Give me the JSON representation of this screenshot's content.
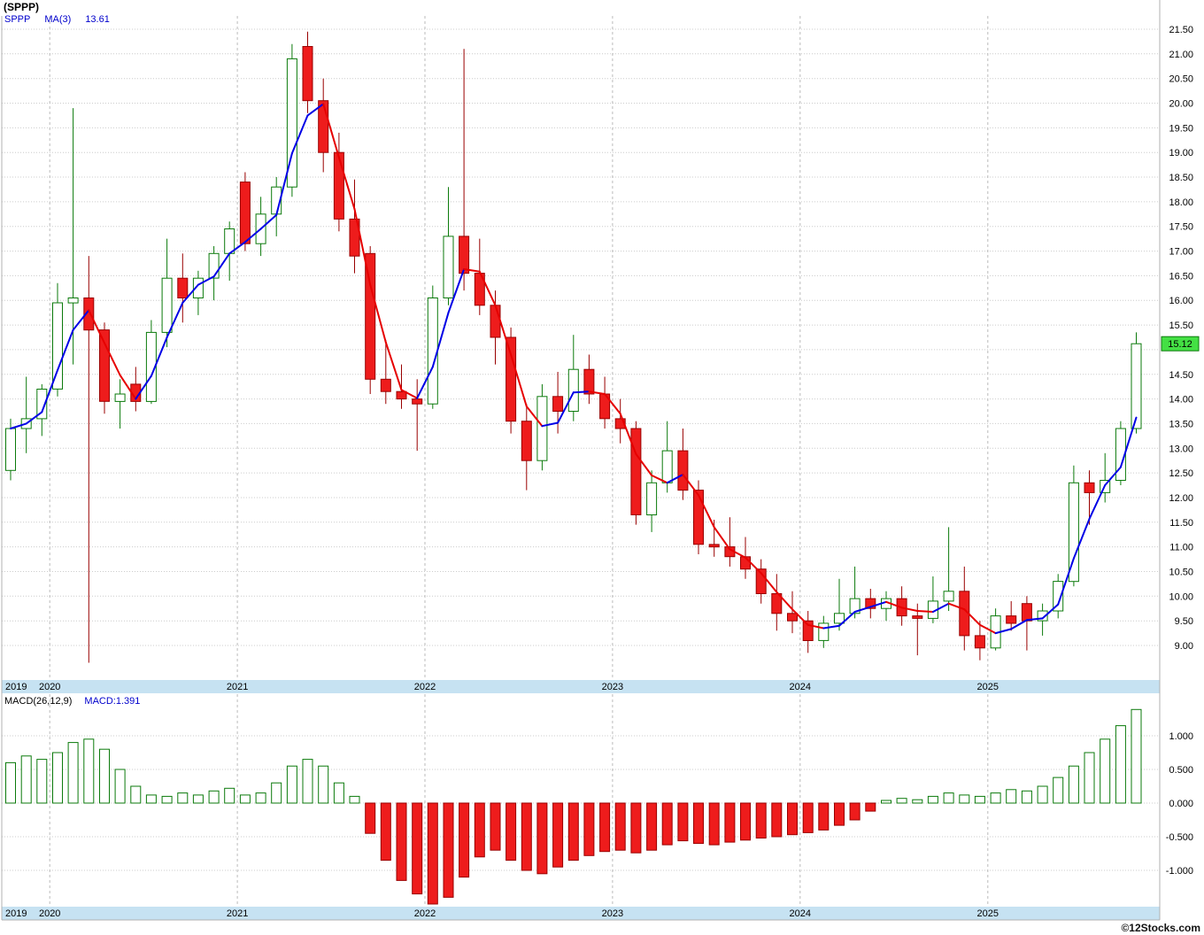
{
  "header": {
    "title": "(SPPP)",
    "ticker": "SPPP",
    "ma_label": "MA(3)",
    "ma_value": "13.61"
  },
  "macd_header": {
    "label": "MACD(26,12,9)",
    "value": "MACD:1.391"
  },
  "watermark": "©12Stocks.com",
  "axes": {
    "price_ticks": [
      "21.50",
      "21.00",
      "20.50",
      "20.00",
      "19.50",
      "19.00",
      "18.50",
      "18.00",
      "17.50",
      "17.00",
      "16.50",
      "16.00",
      "15.50",
      "14.50",
      "14.00",
      "13.50",
      "13.00",
      "12.50",
      "12.00",
      "11.50",
      "11.00",
      "10.50",
      "10.00",
      "9.50",
      "9.00"
    ],
    "current_price": {
      "label": "15.12",
      "value": 15.12
    },
    "years": [
      "2019",
      "2020",
      "2021",
      "2022",
      "2023",
      "2024",
      "2025"
    ],
    "macd_ticks": [
      "1.000",
      "0.500",
      "0.000",
      "-0.500",
      "-1.000"
    ]
  },
  "colors": {
    "up": "#0b7a0b",
    "up_fill": "#ffffff",
    "down": "#ee1c1c",
    "down_edge": "#990000",
    "ma_up": "#0000e6",
    "ma_down": "#e60000",
    "grid": "#cccccc",
    "year_grid": "#bbbbbb",
    "band": "#c6e2f2",
    "border": "#b0b0b0",
    "current_bg": "#44e044",
    "current_border": "#0b7a0b",
    "legend_blue": "#0000cc"
  },
  "chart_data": [
    {
      "type": "candlestick",
      "name": "SPPP monthly price",
      "interval": "monthly",
      "start_month": "2019-10",
      "ylim": [
        8.3,
        21.75
      ],
      "yticks_step": 0.5,
      "grid": true,
      "ohlc": [
        [
          12.55,
          13.6,
          12.35,
          13.4
        ],
        [
          13.4,
          14.45,
          12.9,
          13.6
        ],
        [
          13.6,
          14.3,
          13.25,
          14.2
        ],
        [
          14.2,
          16.35,
          14.05,
          15.95
        ],
        [
          15.95,
          19.9,
          14.7,
          16.05
        ],
        [
          16.05,
          16.9,
          8.65,
          15.4
        ],
        [
          15.4,
          15.55,
          13.7,
          13.95
        ],
        [
          13.95,
          14.4,
          13.4,
          14.1
        ],
        [
          14.3,
          14.65,
          13.75,
          13.95
        ],
        [
          13.95,
          15.6,
          13.9,
          15.35
        ],
        [
          15.35,
          17.25,
          15.05,
          16.45
        ],
        [
          16.45,
          16.95,
          15.55,
          16.05
        ],
        [
          16.05,
          16.6,
          15.7,
          16.45
        ],
        [
          16.45,
          17.1,
          16.0,
          16.95
        ],
        [
          16.95,
          17.6,
          16.4,
          17.45
        ],
        [
          18.4,
          18.6,
          17.0,
          17.15
        ],
        [
          17.15,
          18.1,
          16.9,
          17.75
        ],
        [
          17.75,
          18.5,
          17.3,
          18.3
        ],
        [
          18.3,
          21.2,
          18.1,
          20.9
        ],
        [
          21.15,
          21.45,
          19.8,
          20.05
        ],
        [
          20.05,
          20.5,
          18.6,
          19.0
        ],
        [
          19.0,
          19.4,
          17.4,
          17.65
        ],
        [
          17.65,
          18.45,
          16.55,
          16.9
        ],
        [
          16.95,
          17.1,
          14.1,
          14.4
        ],
        [
          14.4,
          15.2,
          13.9,
          14.15
        ],
        [
          14.15,
          14.7,
          13.8,
          14.0
        ],
        [
          14.0,
          14.4,
          12.95,
          13.9
        ],
        [
          13.9,
          16.3,
          13.8,
          16.05
        ],
        [
          16.05,
          18.3,
          15.9,
          17.3
        ],
        [
          17.3,
          21.1,
          16.2,
          16.55
        ],
        [
          16.55,
          17.25,
          15.7,
          15.9
        ],
        [
          15.9,
          16.2,
          14.7,
          15.25
        ],
        [
          15.25,
          15.45,
          13.3,
          13.55
        ],
        [
          13.55,
          13.9,
          12.15,
          12.75
        ],
        [
          12.75,
          14.3,
          12.55,
          14.05
        ],
        [
          14.05,
          14.55,
          13.3,
          13.75
        ],
        [
          13.75,
          15.3,
          13.55,
          14.6
        ],
        [
          14.6,
          14.9,
          13.9,
          14.1
        ],
        [
          14.1,
          14.45,
          13.4,
          13.6
        ],
        [
          13.6,
          14.0,
          13.1,
          13.4
        ],
        [
          13.4,
          13.55,
          11.45,
          11.65
        ],
        [
          11.65,
          12.55,
          11.3,
          12.3
        ],
        [
          12.3,
          13.55,
          12.1,
          12.95
        ],
        [
          12.95,
          13.4,
          11.95,
          12.15
        ],
        [
          12.15,
          12.35,
          10.85,
          11.05
        ],
        [
          11.05,
          11.55,
          10.8,
          11.0
        ],
        [
          11.0,
          11.6,
          10.6,
          10.8
        ],
        [
          10.8,
          11.2,
          10.35,
          10.55
        ],
        [
          10.55,
          10.75,
          9.85,
          10.05
        ],
        [
          10.05,
          10.45,
          9.3,
          9.65
        ],
        [
          9.65,
          10.1,
          9.25,
          9.5
        ],
        [
          9.5,
          9.7,
          8.85,
          9.1
        ],
        [
          9.1,
          9.6,
          8.95,
          9.45
        ],
        [
          9.45,
          10.35,
          9.3,
          9.65
        ],
        [
          9.65,
          10.6,
          9.55,
          9.95
        ],
        [
          9.95,
          10.15,
          9.55,
          9.75
        ],
        [
          9.75,
          10.1,
          9.5,
          9.95
        ],
        [
          9.95,
          10.2,
          9.4,
          9.6
        ],
        [
          9.6,
          9.85,
          8.8,
          9.55
        ],
        [
          9.55,
          10.4,
          9.45,
          9.9
        ],
        [
          9.9,
          11.4,
          9.7,
          10.1
        ],
        [
          10.1,
          10.6,
          8.9,
          9.2
        ],
        [
          9.2,
          9.5,
          8.7,
          8.95
        ],
        [
          8.95,
          9.75,
          8.9,
          9.6
        ],
        [
          9.6,
          9.9,
          9.3,
          9.45
        ],
        [
          9.85,
          10.0,
          8.9,
          9.5
        ],
        [
          9.5,
          9.85,
          9.2,
          9.7
        ],
        [
          9.7,
          10.45,
          9.55,
          10.3
        ],
        [
          10.3,
          12.65,
          10.2,
          12.3
        ],
        [
          12.3,
          12.55,
          11.45,
          12.1
        ],
        [
          12.1,
          12.9,
          11.9,
          12.35
        ],
        [
          12.35,
          13.55,
          12.25,
          13.4
        ],
        [
          13.4,
          15.35,
          13.3,
          15.12
        ]
      ],
      "overlay": {
        "type": "line",
        "name": "MA(3)",
        "period": 3,
        "last_value": 13.61
      }
    },
    {
      "type": "bar",
      "name": "MACD(26,12,9) histogram",
      "last_value": 1.391,
      "ylim": [
        -1.55,
        1.55
      ],
      "values": [
        0.6,
        0.7,
        0.65,
        0.75,
        0.9,
        0.95,
        0.8,
        0.5,
        0.25,
        0.12,
        0.1,
        0.15,
        0.12,
        0.18,
        0.22,
        0.12,
        0.15,
        0.3,
        0.55,
        0.65,
        0.55,
        0.3,
        0.1,
        -0.45,
        -0.85,
        -1.15,
        -1.35,
        -1.5,
        -1.4,
        -1.1,
        -0.8,
        -0.7,
        -0.85,
        -1.0,
        -1.05,
        -0.95,
        -0.85,
        -0.78,
        -0.72,
        -0.7,
        -0.74,
        -0.7,
        -0.62,
        -0.56,
        -0.6,
        -0.62,
        -0.58,
        -0.55,
        -0.52,
        -0.5,
        -0.47,
        -0.44,
        -0.4,
        -0.33,
        -0.25,
        -0.12,
        0.04,
        0.07,
        0.05,
        0.1,
        0.15,
        0.12,
        0.1,
        0.15,
        0.2,
        0.18,
        0.25,
        0.38,
        0.55,
        0.75,
        0.95,
        1.15,
        1.391
      ]
    }
  ]
}
